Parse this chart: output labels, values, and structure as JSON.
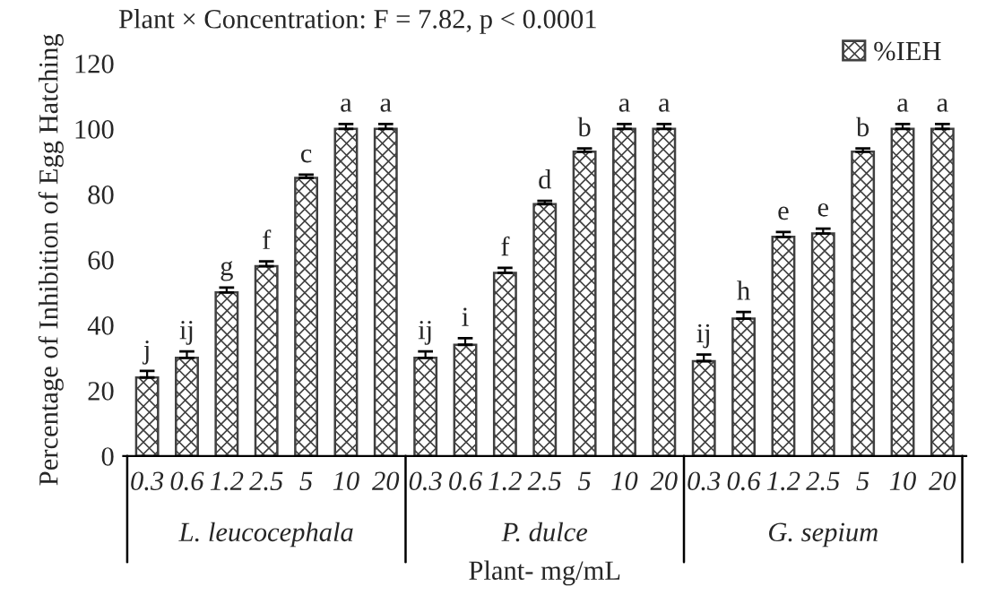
{
  "chart_data": {
    "type": "bar",
    "title": "Plant × Concentration: F = 7.82, p < 0.0001",
    "xlabel": "Plant- mg/mL",
    "ylabel": "Percentage of Inhibition of Egg Hatching",
    "categories": [
      "0.3",
      "0.6",
      "1.2",
      "2.5",
      "5",
      "10",
      "20",
      "0.3",
      "0.6",
      "1.2",
      "2.5",
      "5",
      "10",
      "20",
      "0.3",
      "0.6",
      "1.2",
      "2.5",
      "5",
      "10",
      "20"
    ],
    "annotations": [
      "L. leucocephala",
      "P. dulce",
      "G. sepium"
    ],
    "series": [
      {
        "name": "%IEH",
        "color": "#404040",
        "values": [
          24,
          30,
          50,
          58,
          85,
          100,
          100,
          30,
          34,
          56,
          77,
          93,
          100,
          100,
          29,
          42,
          67,
          68,
          93,
          100,
          100
        ],
        "errors": [
          2,
          2,
          1.5,
          1.5,
          1,
          1.5,
          1.5,
          2,
          2,
          1.5,
          1,
          1,
          1.5,
          1.5,
          2,
          2,
          1.5,
          1.5,
          1,
          1.5,
          1.5
        ],
        "value_labels": [
          "j",
          "ij",
          "g",
          "f",
          "c",
          "a",
          "a",
          "ij",
          "i",
          "f",
          "d",
          "b",
          "a",
          "a",
          "ij",
          "h",
          "e",
          "e",
          "b",
          "a",
          "a"
        ]
      }
    ],
    "ylim": [
      0,
      120
    ],
    "yticks": [
      0,
      20,
      40,
      60,
      80,
      100,
      120
    ],
    "grid": false,
    "legend": "top right"
  }
}
